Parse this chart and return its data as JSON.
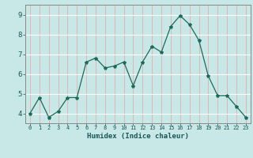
{
  "x": [
    0,
    1,
    2,
    3,
    4,
    5,
    6,
    7,
    8,
    9,
    10,
    11,
    12,
    13,
    14,
    15,
    16,
    17,
    18,
    19,
    20,
    21,
    22,
    23
  ],
  "y": [
    4.0,
    4.8,
    3.8,
    4.1,
    4.8,
    4.8,
    6.6,
    6.8,
    6.3,
    6.4,
    6.6,
    5.4,
    6.6,
    7.4,
    7.1,
    8.4,
    8.95,
    8.5,
    7.7,
    5.9,
    4.9,
    4.9,
    4.35,
    3.8
  ],
  "line_color": "#1a6b5a",
  "marker": "*",
  "marker_size": 3,
  "bg_color": "#c8e8e8",
  "xlabel": "Humidex (Indice chaleur)",
  "xlabel_color": "#1a5555",
  "tick_color": "#1a5555",
  "ylim": [
    3.5,
    9.5
  ],
  "xlim": [
    -0.5,
    23.5
  ],
  "yticks": [
    4,
    5,
    6,
    7,
    8,
    9
  ],
  "xticks": [
    0,
    1,
    2,
    3,
    4,
    5,
    6,
    7,
    8,
    9,
    10,
    11,
    12,
    13,
    14,
    15,
    16,
    17,
    18,
    19,
    20,
    21,
    22,
    23
  ],
  "grid_v_color": "#e8aaaa",
  "grid_h_color": "#ffffff",
  "spine_color": "#888888"
}
